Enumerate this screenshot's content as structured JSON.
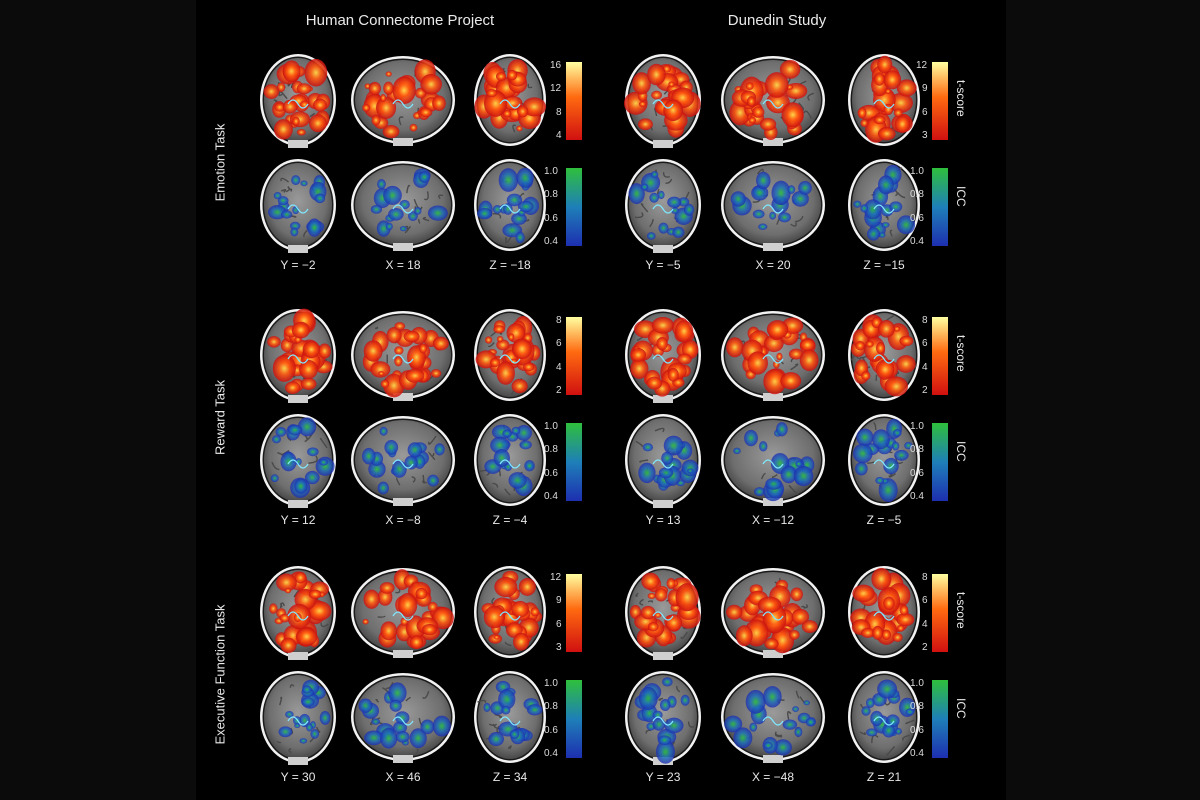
{
  "columns": [
    {
      "title": "Human Connectome Project"
    },
    {
      "title": "Dunedin Study"
    }
  ],
  "tasks": [
    {
      "label": "Emotion Task",
      "hcp": {
        "coords": [
          "Y = −2",
          "X = 18",
          "Z = −18"
        ],
        "tscore_ticks": [
          "16",
          "12",
          "8",
          "4"
        ],
        "icc_ticks": [
          "1.0",
          "0.8",
          "0.6",
          "0.4"
        ]
      },
      "dunedin": {
        "coords": [
          "Y = −5",
          "X = 20",
          "Z = −15"
        ],
        "tscore_ticks": [
          "12",
          "9",
          "6",
          "3"
        ],
        "icc_ticks": [
          "1.0",
          "0.8",
          "0.6",
          "0.4"
        ]
      }
    },
    {
      "label": "Reward Task",
      "hcp": {
        "coords": [
          "Y = 12",
          "X = −8",
          "Z = −4"
        ],
        "tscore_ticks": [
          "8",
          "6",
          "4",
          "2"
        ],
        "icc_ticks": [
          "1.0",
          "0.8",
          "0.6",
          "0.4"
        ]
      },
      "dunedin": {
        "coords": [
          "Y = 13",
          "X = −12",
          "Z = −5"
        ],
        "tscore_ticks": [
          "8",
          "6",
          "4",
          "2"
        ],
        "icc_ticks": [
          "1.0",
          "0.8",
          "0.6",
          "0.4"
        ]
      }
    },
    {
      "label": "Executive Function Task",
      "hcp": {
        "coords": [
          "Y = 30",
          "X = 46",
          "Z = 34"
        ],
        "tscore_ticks": [
          "12",
          "9",
          "6",
          "3"
        ],
        "icc_ticks": [
          "1.0",
          "0.8",
          "0.6",
          "0.4"
        ]
      },
      "dunedin": {
        "coords": [
          "Y = 23",
          "X = −48",
          "Z = 21"
        ],
        "tscore_ticks": [
          "8",
          "6",
          "4",
          "2"
        ],
        "icc_ticks": [
          "1.0",
          "0.8",
          "0.6",
          "0.4"
        ]
      }
    }
  ],
  "colorbar_labels": {
    "tscore": "t-score",
    "icc": "ICC"
  },
  "colors": {
    "background": "#000000",
    "hot_low": "#d01010",
    "hot_high": "#ffffa0",
    "icc_low": "#1d2fb0",
    "icc_high": "#2fbf3c"
  }
}
